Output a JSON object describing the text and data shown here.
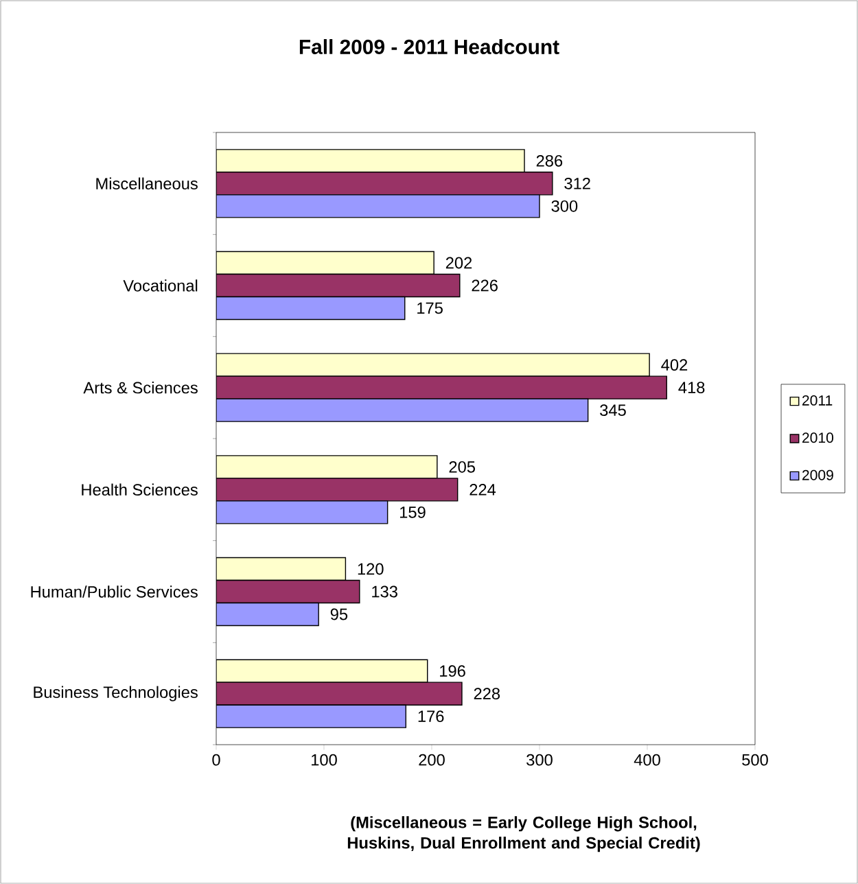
{
  "chart_data": {
    "type": "bar",
    "orientation": "horizontal",
    "title": "Fall 2009 - 2011 Headcount",
    "categories": [
      "Miscellaneous",
      "Vocational",
      "Arts & Sciences",
      "Health Sciences",
      "Human/Public Services",
      "Business Technologies"
    ],
    "series": [
      {
        "name": "2011",
        "color": "#ffffcc",
        "values": [
          286,
          202,
          402,
          205,
          120,
          196
        ]
      },
      {
        "name": "2010",
        "color": "#993366",
        "values": [
          312,
          226,
          418,
          224,
          133,
          228
        ]
      },
      {
        "name": "2009",
        "color": "#9999ff",
        "values": [
          300,
          175,
          345,
          159,
          95,
          176
        ]
      }
    ],
    "xlim": [
      0,
      500
    ],
    "xticks": [
      0,
      100,
      200,
      300,
      400,
      500
    ],
    "data_labels": true,
    "legend": "right",
    "grid": false,
    "annotations": [
      "(Miscellaneous = Early College High School, Huskins, Dual Enrollment and Special Credit)"
    ]
  }
}
